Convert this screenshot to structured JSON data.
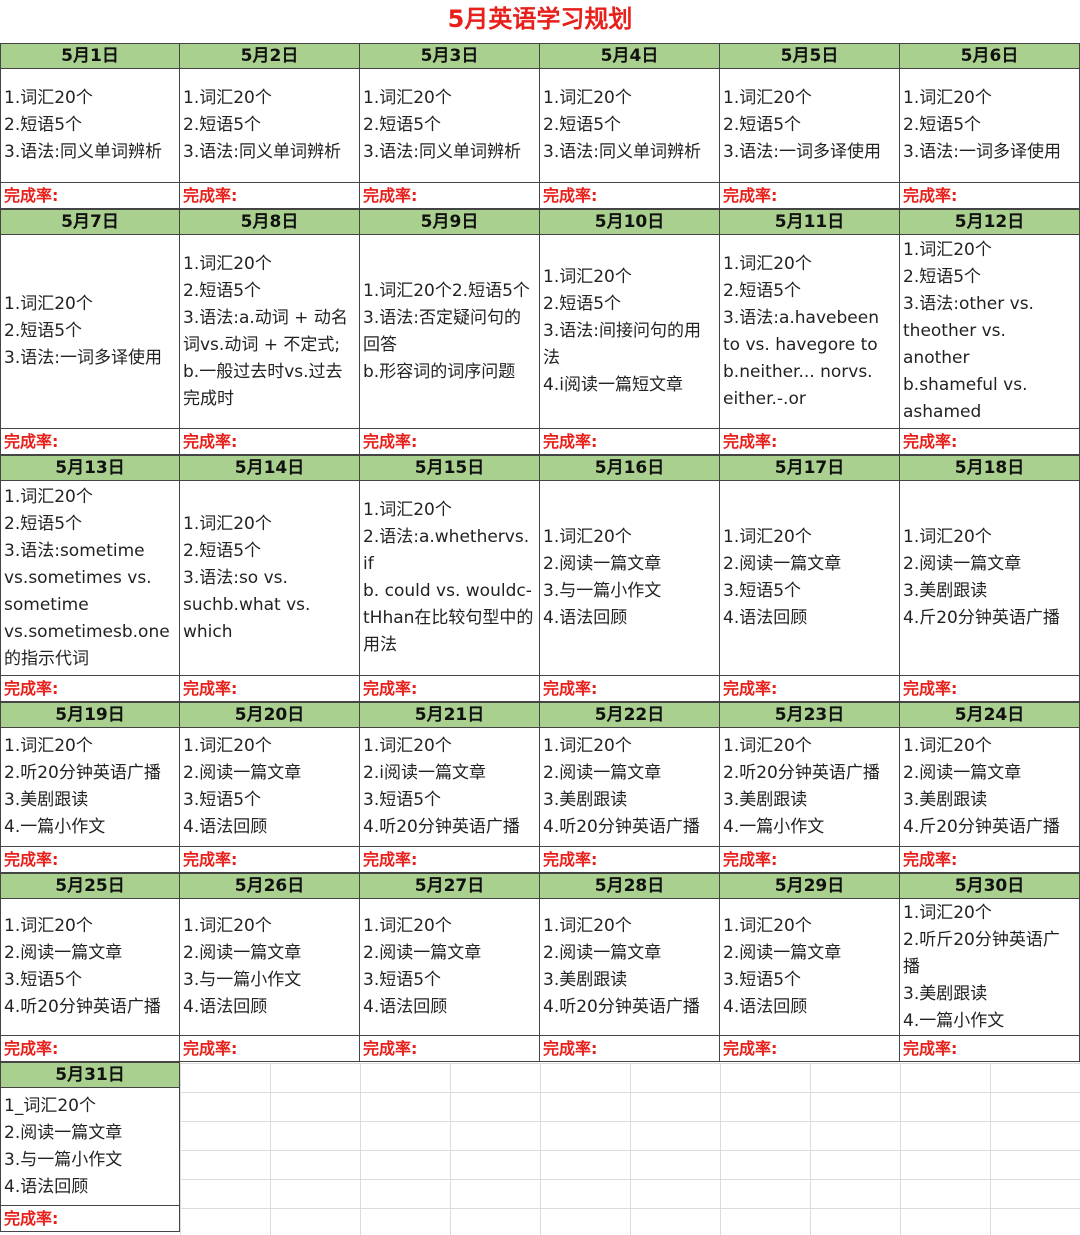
{
  "title": "5月英语学习规划",
  "rate_label": "完成率:",
  "days": [
    {
      "date": "5月1日",
      "items": [
        "1.词汇20个",
        "2.短语5个",
        "3.语法:同义单词辨析"
      ]
    },
    {
      "date": "5月2日",
      "items": [
        "1.词汇20个",
        "2.短语5个",
        "3.语法:同义单词辨析"
      ]
    },
    {
      "date": "5月3日",
      "items": [
        "1.词汇20个",
        "2.短语5个",
        "3.语法:同义单词辨析"
      ]
    },
    {
      "date": "5月4日",
      "items": [
        "1.词汇20个",
        "2.短语5个",
        "3.语法:同义单词辨析"
      ]
    },
    {
      "date": "5月5日",
      "items": [
        "1.词汇20个",
        "2.短语5个",
        "3.语法:一词多译使用"
      ]
    },
    {
      "date": "5月6日",
      "items": [
        "1.词汇20个",
        "2.短语5个",
        "3.语法:一词多译使用"
      ]
    },
    {
      "date": "5月7日",
      "items": [
        "1.词汇20个",
        "2.短语5个",
        "3.语法:一词多译使用"
      ]
    },
    {
      "date": "5月8日",
      "items": [
        "1.词汇20个",
        "2.短语5个",
        "3.语法:a.动词 + 动名词vs.动词 + 不定式;",
        "b.一般过去时vs.过去完成时"
      ]
    },
    {
      "date": "5月9日",
      "items": [
        "1.词汇20个2.短语5个",
        "3.语法:否定疑问句的回答",
        "b.形容词的词序问题"
      ]
    },
    {
      "date": "5月10日",
      "items": [
        "1.词汇20个",
        "2.短语5个",
        "3.语法:间接问句的用法",
        "4.i阅读一篇短文章"
      ]
    },
    {
      "date": "5月11日",
      "items": [
        "1.词汇20个",
        "2.短语5个",
        "3.语法:a.havebeen to vs. havegore to",
        "b.neither... norvs. either.-.or"
      ]
    },
    {
      "date": "5月12日",
      "items": [
        "1.词汇20个",
        "2.短语5个",
        "3.语法:other vs. theother vs. another",
        "b.shameful vs. ashamed"
      ]
    },
    {
      "date": "5月13日",
      "items": [
        "1.词汇20个",
        "2.短语5个",
        "3.语法:sometime vs.sometimes vs. sometime vs.sometimesb.one的指示代词"
      ]
    },
    {
      "date": "5月14日",
      "items": [
        "1.词汇20个",
        "2.短语5个",
        "3.语法:so vs. suchb.what vs. which"
      ]
    },
    {
      "date": "5月15日",
      "items": [
        "1.词汇20个",
        "2.语法:a.whethervs. if",
        "b. could vs. wouldc- tHhan在比较句型中的用法"
      ]
    },
    {
      "date": "5月16日",
      "items": [
        "1.词汇20个",
        "2.阅读一篇文章",
        "3.与一篇小作文",
        "4.语法回顾"
      ]
    },
    {
      "date": "5月17日",
      "items": [
        "1.词汇20个",
        "2.阅读一篇文章",
        "3.短语5个",
        "4.语法回顾"
      ]
    },
    {
      "date": "5月18日",
      "items": [
        "1.词汇20个",
        "2.阅读一篇文章",
        "3.美剧跟读",
        "4.斤20分钟英语广播"
      ]
    },
    {
      "date": "5月19日",
      "items": [
        "1.词汇20个",
        "2.听20分钟英语广播",
        "3.美剧跟读",
        "4.一篇小作文"
      ]
    },
    {
      "date": "5月20日",
      "items": [
        "1.词汇20个",
        "2.阅读一篇文章",
        "3.短语5个",
        "4.语法回顾"
      ]
    },
    {
      "date": "5月21日",
      "items": [
        "1.词汇20个",
        "2.i阅读一篇文章",
        "3.短语5个",
        "4.听20分钟英语广播"
      ]
    },
    {
      "date": "5月22日",
      "items": [
        "1.词汇20个",
        "2.阅读一篇文章",
        "3.美剧跟读",
        "4.听20分钟英语广播"
      ]
    },
    {
      "date": "5月23日",
      "items": [
        "1.词汇20个",
        "2.听20分钟英语广播",
        "3.美剧跟读",
        "4.一篇小作文"
      ]
    },
    {
      "date": "5月24日",
      "items": [
        "1.词汇20个",
        "2.阅读一篇文章",
        "3.美剧跟读",
        "4.斤20分钟英语广播"
      ]
    },
    {
      "date": "5月25日",
      "items": [
        "1.词汇20个",
        "2.阅读一篇文章",
        "3.短语5个",
        "4.听20分钟英语广播"
      ]
    },
    {
      "date": "5月26日",
      "items": [
        "1.词汇20个",
        "2.阅读一篇文章",
        "3.与一篇小作文",
        "4.语法回顾"
      ]
    },
    {
      "date": "5月27日",
      "items": [
        "1.词汇20个",
        "2.阅读一篇文章",
        "3.短语5个",
        "4.语法回顾"
      ]
    },
    {
      "date": "5月28日",
      "items": [
        "1.词汇20个",
        "2.阅读一篇文章",
        "3.美剧跟读",
        "4.听20分钟英语广播"
      ]
    },
    {
      "date": "5月29日",
      "items": [
        "1.词汇20个",
        "2.阅读一篇文章",
        "3.短语5个",
        "4.语法回顾"
      ]
    },
    {
      "date": "5月30日",
      "items": [
        "1.词汇20个",
        "2.听斤20分钟英语广播",
        "3.美剧跟读",
        "4.一篇小作文"
      ]
    },
    {
      "date": "5月31日",
      "items": [
        "1_词汇20个",
        "2.阅读一篇文章",
        "3.与一篇小作文",
        "4.语法回顾"
      ]
    }
  ]
}
